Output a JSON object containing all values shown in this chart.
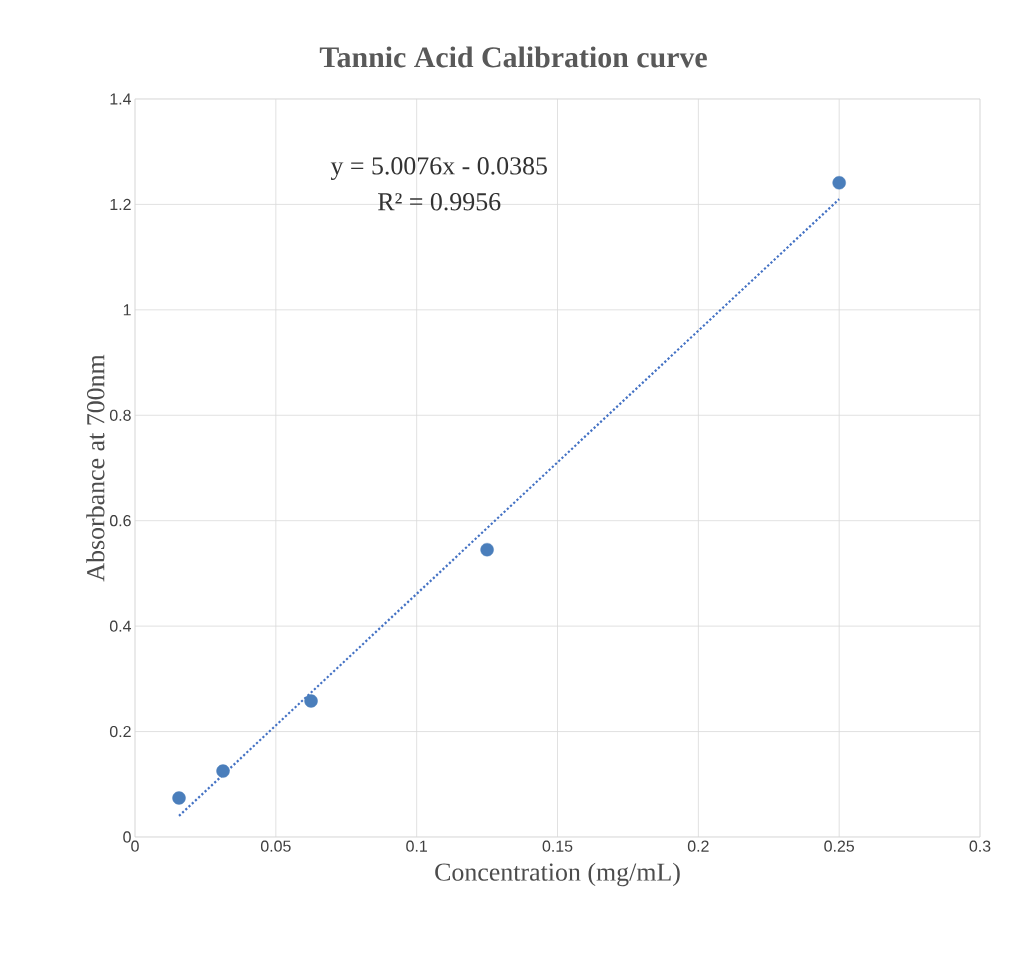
{
  "chart_data": {
    "type": "scatter",
    "title": "Tannic Acid Calibration curve",
    "xlabel": "Concentration (mg/mL)",
    "ylabel": "Absorbance at 700nm",
    "x": [
      0.015625,
      0.03125,
      0.0625,
      0.125,
      0.25
    ],
    "series": [
      {
        "color": "#4a7ebb",
        "marker": "circle",
        "values": [
          0.074,
          0.125,
          0.258,
          0.545,
          1.241
        ]
      },
      {
        "type": "line",
        "color": "#4472c4",
        "line_style": "dotted",
        "marker": "none",
        "x": [
          0.015625,
          0.25
        ],
        "values": [
          0.04,
          1.21
        ]
      }
    ],
    "annotations": [
      "y = 5.0076x - 0.0385",
      "R² = 0.9956"
    ],
    "xlim": [
      0,
      0.3
    ],
    "ylim": [
      0,
      1.4
    ],
    "xticks": [
      0,
      0.05,
      0.1,
      0.15,
      0.2,
      0.25,
      0.3
    ],
    "yticks": [
      0,
      0.2,
      0.4,
      0.6,
      0.8,
      1,
      1.2,
      1.4
    ],
    "grid": true
  }
}
